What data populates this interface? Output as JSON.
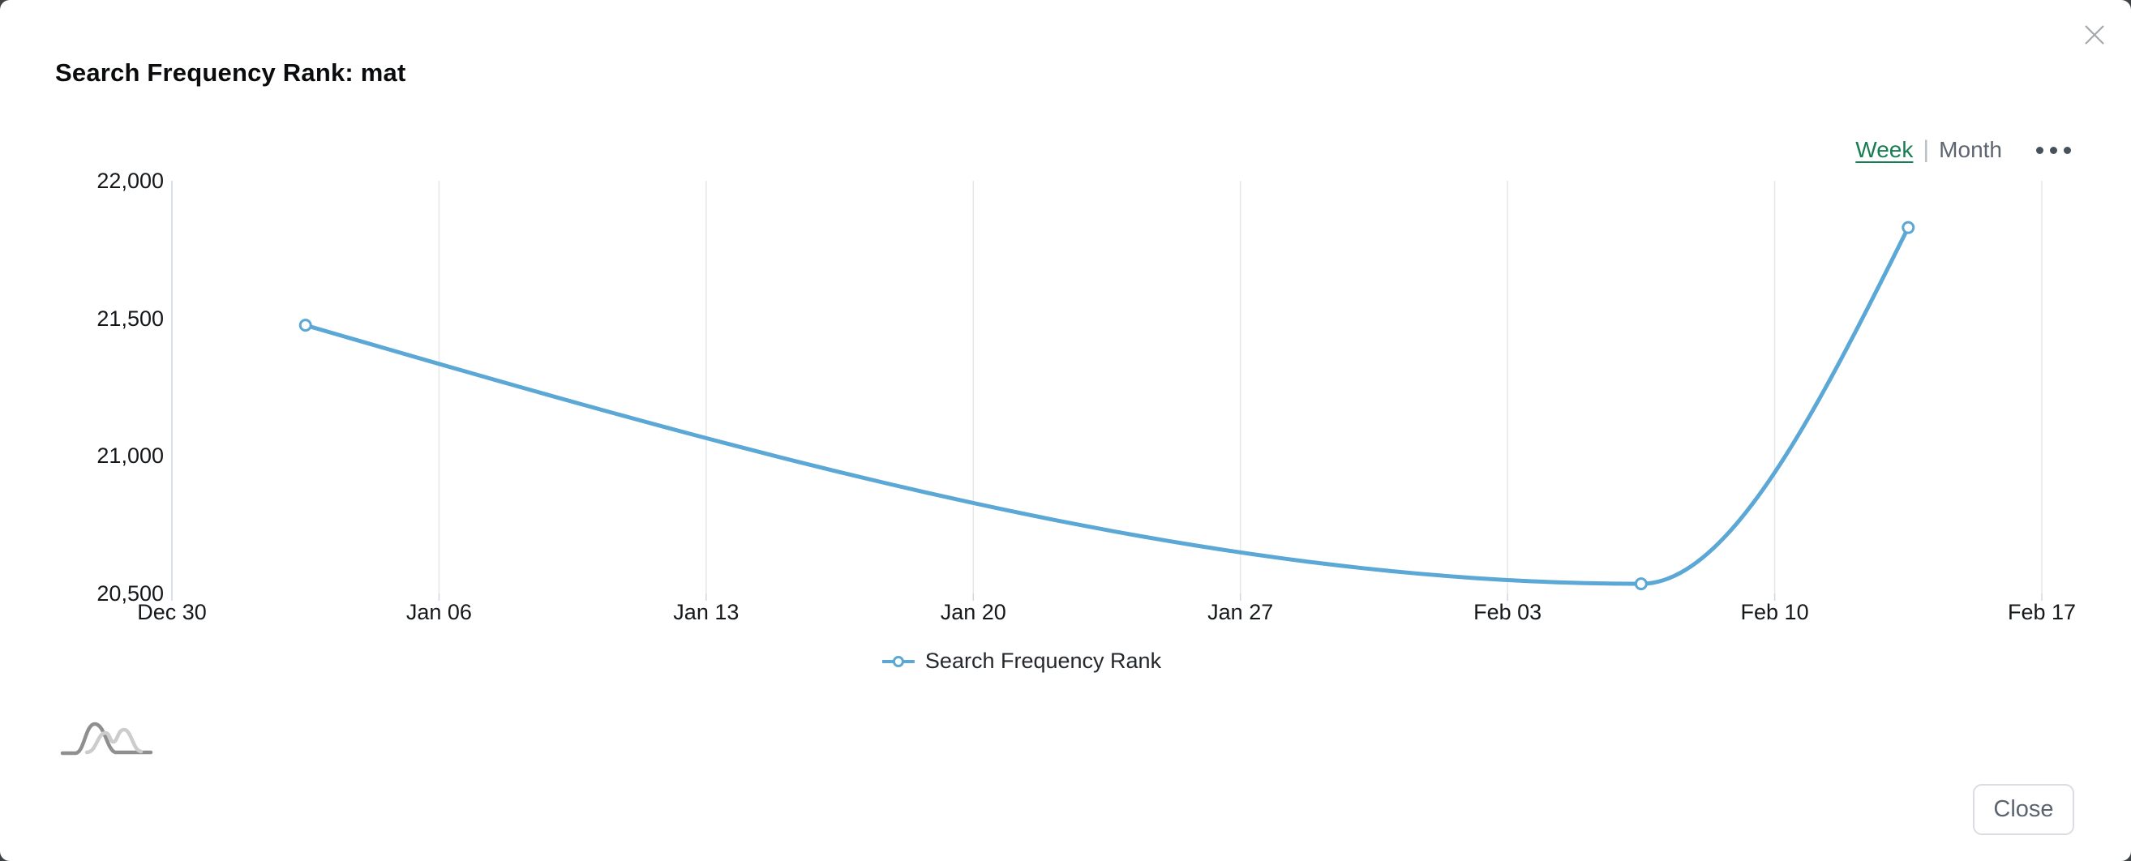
{
  "modal": {
    "title": "Search Frequency Rank: mat",
    "close_button_label": "Close"
  },
  "range_toggle": {
    "week_label": "Week",
    "separator": "|",
    "month_label": "Month",
    "active": "Week",
    "active_color": "#177d52",
    "inactive_color": "#5d6670"
  },
  "legend": {
    "label": "Search Frequency Rank"
  },
  "colors": {
    "series_blue": "#5ba7d6",
    "gridline": "#e7e7e7",
    "axis_line": "#ccd6eb",
    "title_text": "#0b0c0d",
    "axis_text": "#15181b",
    "backdrop": "#3f4245"
  },
  "chart_data": {
    "type": "line",
    "title": "Search Frequency Rank: mat",
    "xlabel": "",
    "ylabel": "",
    "ylim": [
      20500,
      22000
    ],
    "grid": "vertical-only",
    "legend_position": "bottom-center",
    "x_ticks": [
      {
        "label": "Dec 30",
        "day_offset": 0
      },
      {
        "label": "Jan 06",
        "day_offset": 7
      },
      {
        "label": "Jan 13",
        "day_offset": 14
      },
      {
        "label": "Jan 20",
        "day_offset": 21
      },
      {
        "label": "Jan 27",
        "day_offset": 28
      },
      {
        "label": "Feb 03",
        "day_offset": 35
      },
      {
        "label": "Feb 10",
        "day_offset": 42
      },
      {
        "label": "Feb 17",
        "day_offset": 49
      }
    ],
    "y_ticks": [
      {
        "label": "20,500",
        "value": 20500
      },
      {
        "label": "21,000",
        "value": 21000
      },
      {
        "label": "21,500",
        "value": 21500
      },
      {
        "label": "22,000",
        "value": 22000
      }
    ],
    "series": [
      {
        "name": "Search Frequency Rank",
        "color": "#5ba7d6",
        "marker": "hollow-circle",
        "points": [
          {
            "label": "Jan 02",
            "day_offset": 3.5,
            "value": 21475
          },
          {
            "label": "Feb 06",
            "day_offset": 38.5,
            "value": 20535
          },
          {
            "label": "Feb 13",
            "day_offset": 45.5,
            "value": 21830
          }
        ]
      }
    ]
  }
}
